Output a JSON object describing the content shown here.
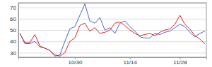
{
  "chart_data": {
    "type": "line",
    "categories": [
      null,
      null,
      null,
      null,
      null,
      null,
      null,
      null,
      null,
      null,
      null,
      "10/30",
      null,
      null,
      null,
      null,
      null,
      null,
      null,
      null,
      null,
      null,
      "11/14",
      null,
      null,
      null,
      null,
      null,
      null,
      null,
      null,
      null,
      "11/28",
      null,
      null,
      null,
      null,
      null
    ],
    "series": [
      {
        "color": "#4466cc",
        "values": [
          47,
          38,
          38,
          40,
          35,
          34,
          32,
          27,
          28,
          40,
          51,
          53,
          63,
          73,
          58,
          56,
          61,
          50,
          52,
          47,
          56,
          58,
          53,
          49,
          44,
          43,
          43,
          47,
          46,
          48,
          49,
          52,
          55,
          53,
          48,
          44,
          47,
          49
        ]
      },
      {
        "color": "#dd2222",
        "values": [
          47,
          39,
          39,
          46,
          36,
          34,
          32,
          28,
          27,
          30,
          40,
          43,
          54,
          56,
          49,
          52,
          47,
          48,
          50,
          56,
          57,
          54,
          50,
          47,
          45,
          46,
          47,
          45,
          48,
          50,
          51,
          55,
          63,
          55,
          51,
          45,
          42,
          38
        ]
      }
    ],
    "ylim": [
      26,
      74
    ],
    "yticks": [
      30,
      40,
      50,
      60,
      70
    ],
    "grid": true
  }
}
